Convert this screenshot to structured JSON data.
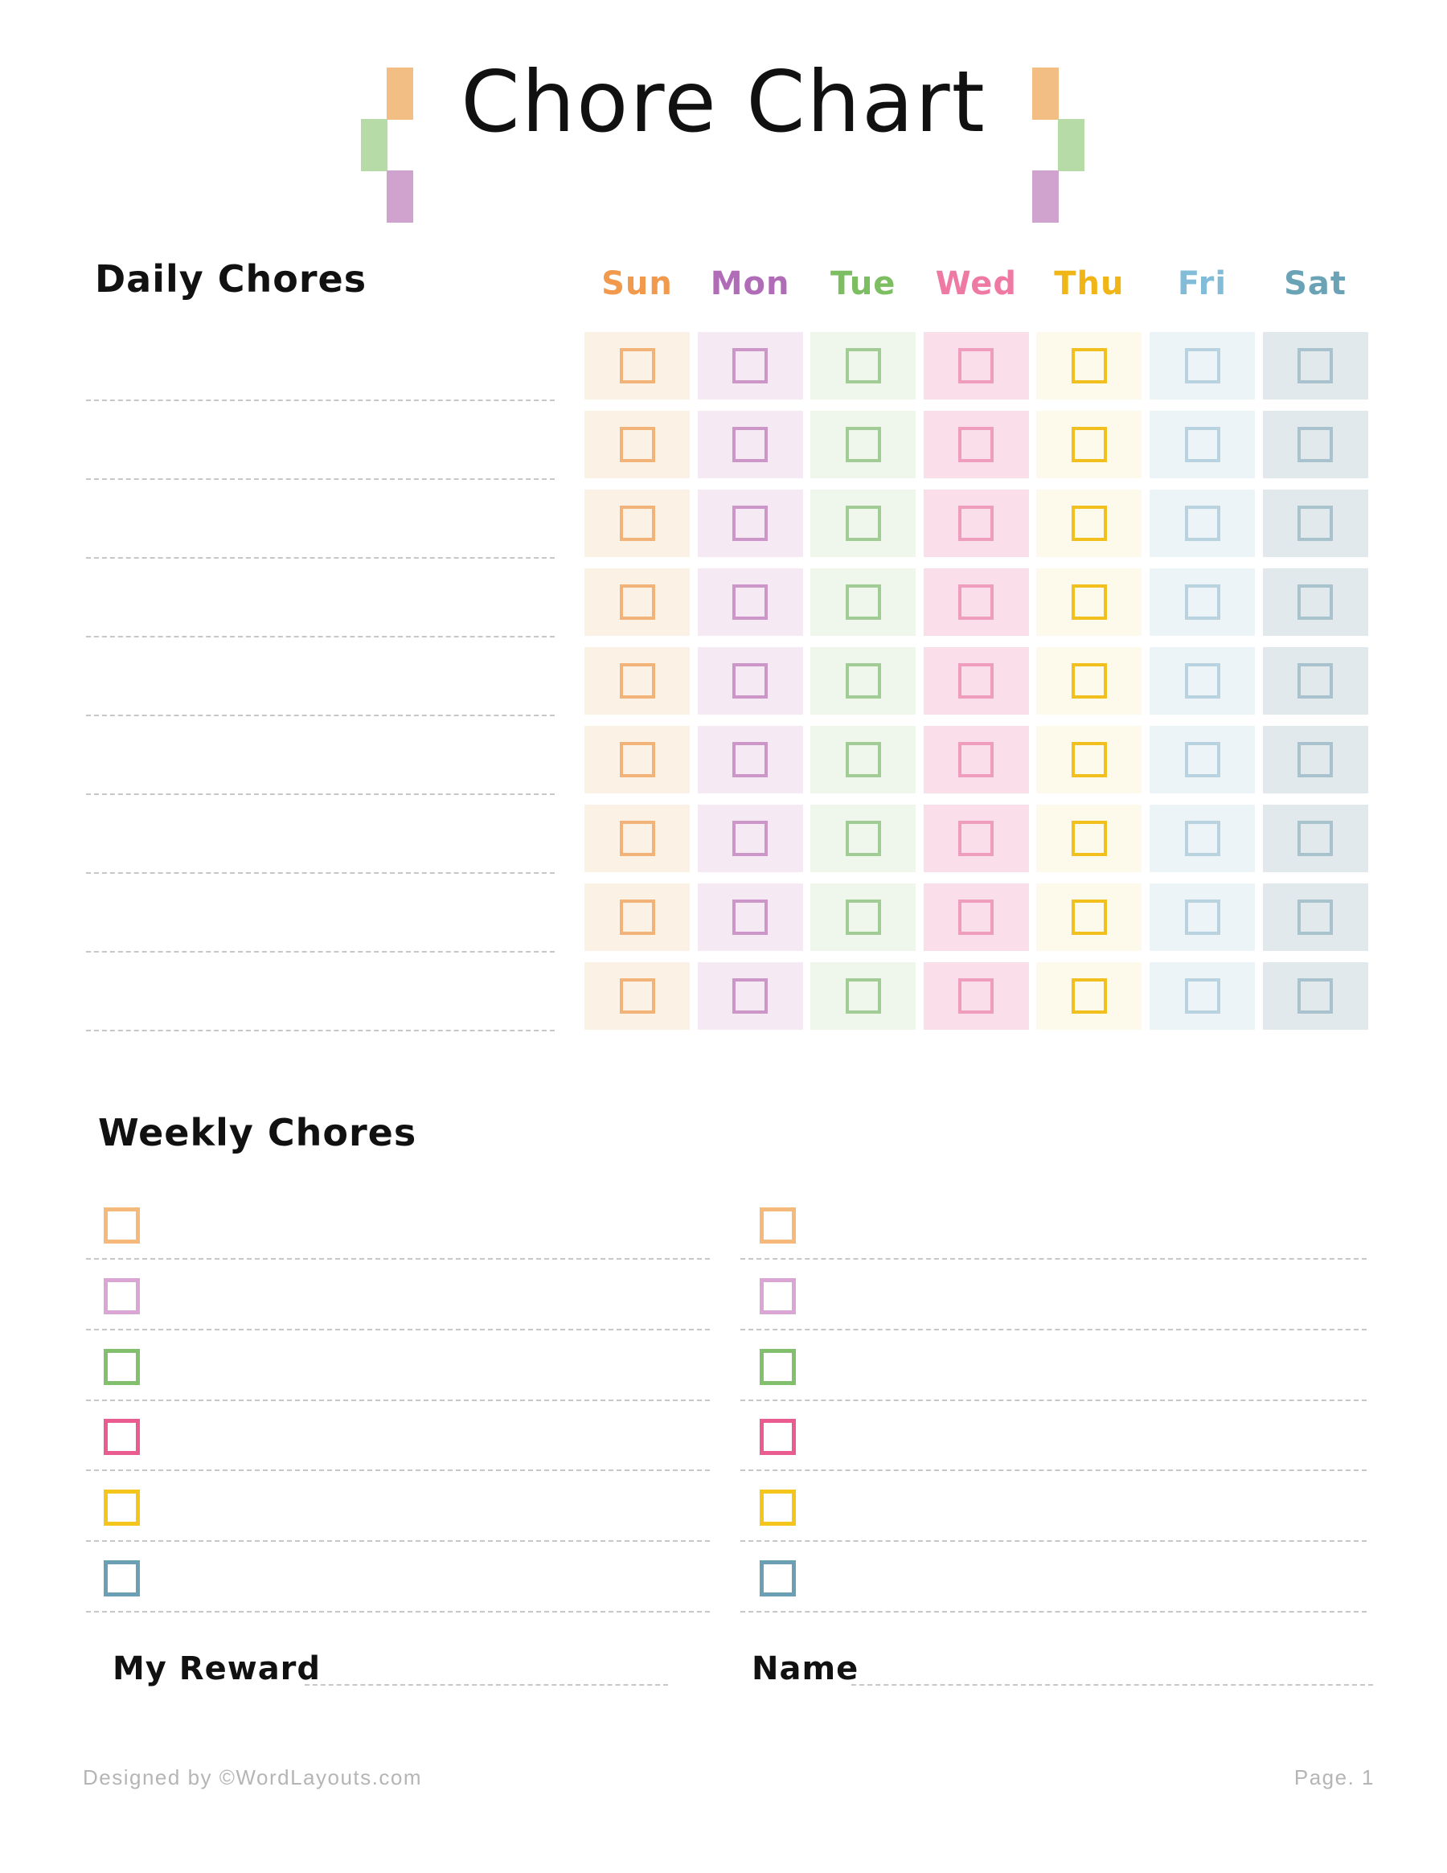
{
  "page": {
    "title": "Chore Chart"
  },
  "decor": {
    "orange": "#F2BE84",
    "green": "#B7DBA7",
    "purple": "#CFA3CD"
  },
  "daily": {
    "heading": "Daily Chores",
    "rows": 9,
    "days": [
      {
        "label": "Sun",
        "text_color": "#F19A4D",
        "cell_bg": "#FCF1E5",
        "box_color": "#F1B377"
      },
      {
        "label": "Mon",
        "text_color": "#B16CB8",
        "cell_bg": "#F5E9F4",
        "box_color": "#CD96C8"
      },
      {
        "label": "Tue",
        "text_color": "#7DBE62",
        "cell_bg": "#EFF6EB",
        "box_color": "#A2CC95"
      },
      {
        "label": "Wed",
        "text_color": "#EE7AA4",
        "cell_bg": "#FADFEA",
        "box_color": "#EF9DBC"
      },
      {
        "label": "Thu",
        "text_color": "#F0B516",
        "cell_bg": "#FEFAEB",
        "box_color": "#F1C01F"
      },
      {
        "label": "Fri",
        "text_color": "#82BCD8",
        "cell_bg": "#EDF4F8",
        "box_color": "#B8D2DF"
      },
      {
        "label": "Sat",
        "text_color": "#6BA3B6",
        "cell_bg": "#E1E9EC",
        "box_color": "#A8C3CD"
      }
    ]
  },
  "weekly": {
    "heading": "Weekly Chores",
    "rows_per_column": 6,
    "columns": 2,
    "box_colors": [
      "#F5B97C",
      "#DAA7D4",
      "#83C06D",
      "#E85C90",
      "#F3C51D",
      "#6BA0B4"
    ]
  },
  "fields": {
    "reward_label": "My Reward",
    "name_label": "Name"
  },
  "footer": {
    "credit": "Designed by ©WordLayouts.com",
    "page": "Page. 1"
  }
}
